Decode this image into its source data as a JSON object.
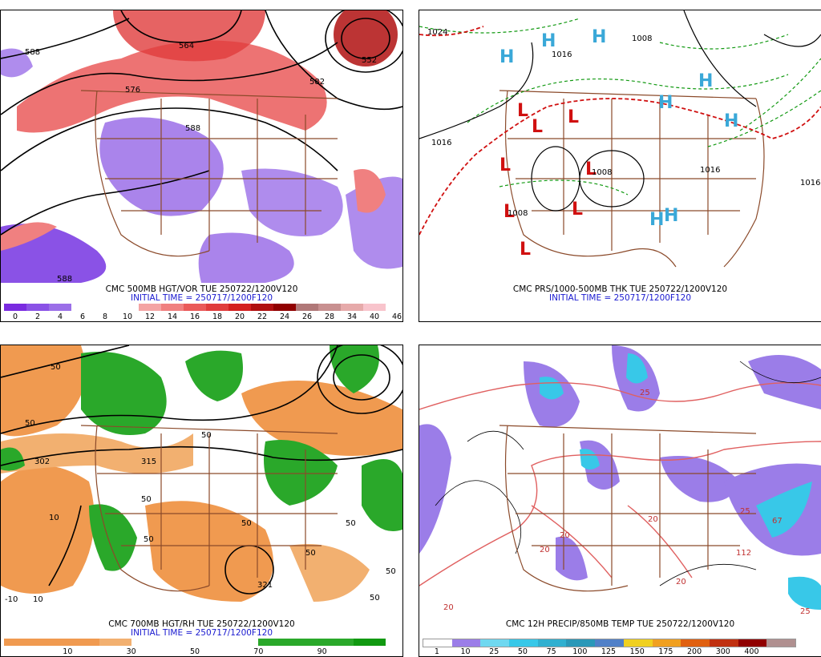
{
  "panels": [
    {
      "id": "p1",
      "title": "CMC 500MB HGT/VOR TUE 250722/1200V120",
      "init": "INITIAL TIME = 250717/1200F120",
      "contour_labels": [
        "588",
        "564",
        "576",
        "588",
        "552",
        "582",
        "588",
        "588"
      ],
      "legend_colors": [
        "#7a2be0",
        "#8a52e6",
        "#9b6fe8",
        "#ffffff",
        "#ffffff",
        "#ffffff",
        "#f4a4a4",
        "#f08080",
        "#ea5a5a",
        "#e03c3c",
        "#d42020",
        "#b01010",
        "#900000",
        "#b07878",
        "#c89090",
        "#e6aaaa",
        "#f8c4cc"
      ],
      "legend_ticks": [
        "0",
        "2",
        "4",
        "6",
        "8",
        "10",
        "12",
        "14",
        "16",
        "18",
        "20",
        "22",
        "24",
        "26",
        "28",
        "34",
        "40",
        "46"
      ]
    },
    {
      "id": "p2",
      "title": "CMC PRS/1000-500MB THK TUE 250722/1200V120",
      "init": "INITIAL TIME = 250717/1200F120",
      "contour_labels": [
        "1024",
        "1016",
        "1008",
        "1016",
        "1008",
        "1016",
        "1016",
        "1008"
      ],
      "highs": [
        "H",
        "H",
        "H",
        "H",
        "H",
        "H",
        "H",
        "H"
      ],
      "lows": [
        "L",
        "L",
        "L",
        "L",
        "L",
        "L",
        "L",
        "L"
      ]
    },
    {
      "id": "p3",
      "title": "CMC 700MB HGT/RH TUE 250722/1200V120",
      "init": "INITIAL TIME = 250717/1200F120",
      "contour_labels": [
        "50",
        "50",
        "50",
        "50",
        "302",
        "315",
        "50",
        "50",
        "-10",
        "10",
        "10",
        "50",
        "50",
        "50",
        "321",
        "50"
      ],
      "legend_colors": [
        "#f09a50",
        "#f09a50",
        "#f09a50",
        "#f2b070",
        "#ffffff",
        "#ffffff",
        "#ffffff",
        "#ffffff",
        "#2aa82a",
        "#2aa82a",
        "#2aa82a",
        "#119911"
      ],
      "legend_ticks": [
        "10",
        "30",
        "50",
        "70",
        "90"
      ]
    },
    {
      "id": "p4",
      "title": "CMC 12H PRECIP/850MB TEMP TUE 250722/1200V120",
      "init": "",
      "contour_labels": [
        "25",
        "20",
        "20",
        "20",
        "20",
        "20",
        "25",
        "25",
        "112",
        "67"
      ],
      "legend_colors": [
        "#ffffff",
        "#9b7de8",
        "#6fd8f0",
        "#38c8e8",
        "#30b0d0",
        "#2a98b8",
        "#5080c8",
        "#f0d020",
        "#f0a020",
        "#e06010",
        "#c03010",
        "#900000",
        "#b09090"
      ],
      "legend_ticks": [
        "1",
        "10",
        "25",
        "50",
        "75",
        "100",
        "125",
        "150",
        "175",
        "200",
        "300",
        "400"
      ]
    }
  ]
}
